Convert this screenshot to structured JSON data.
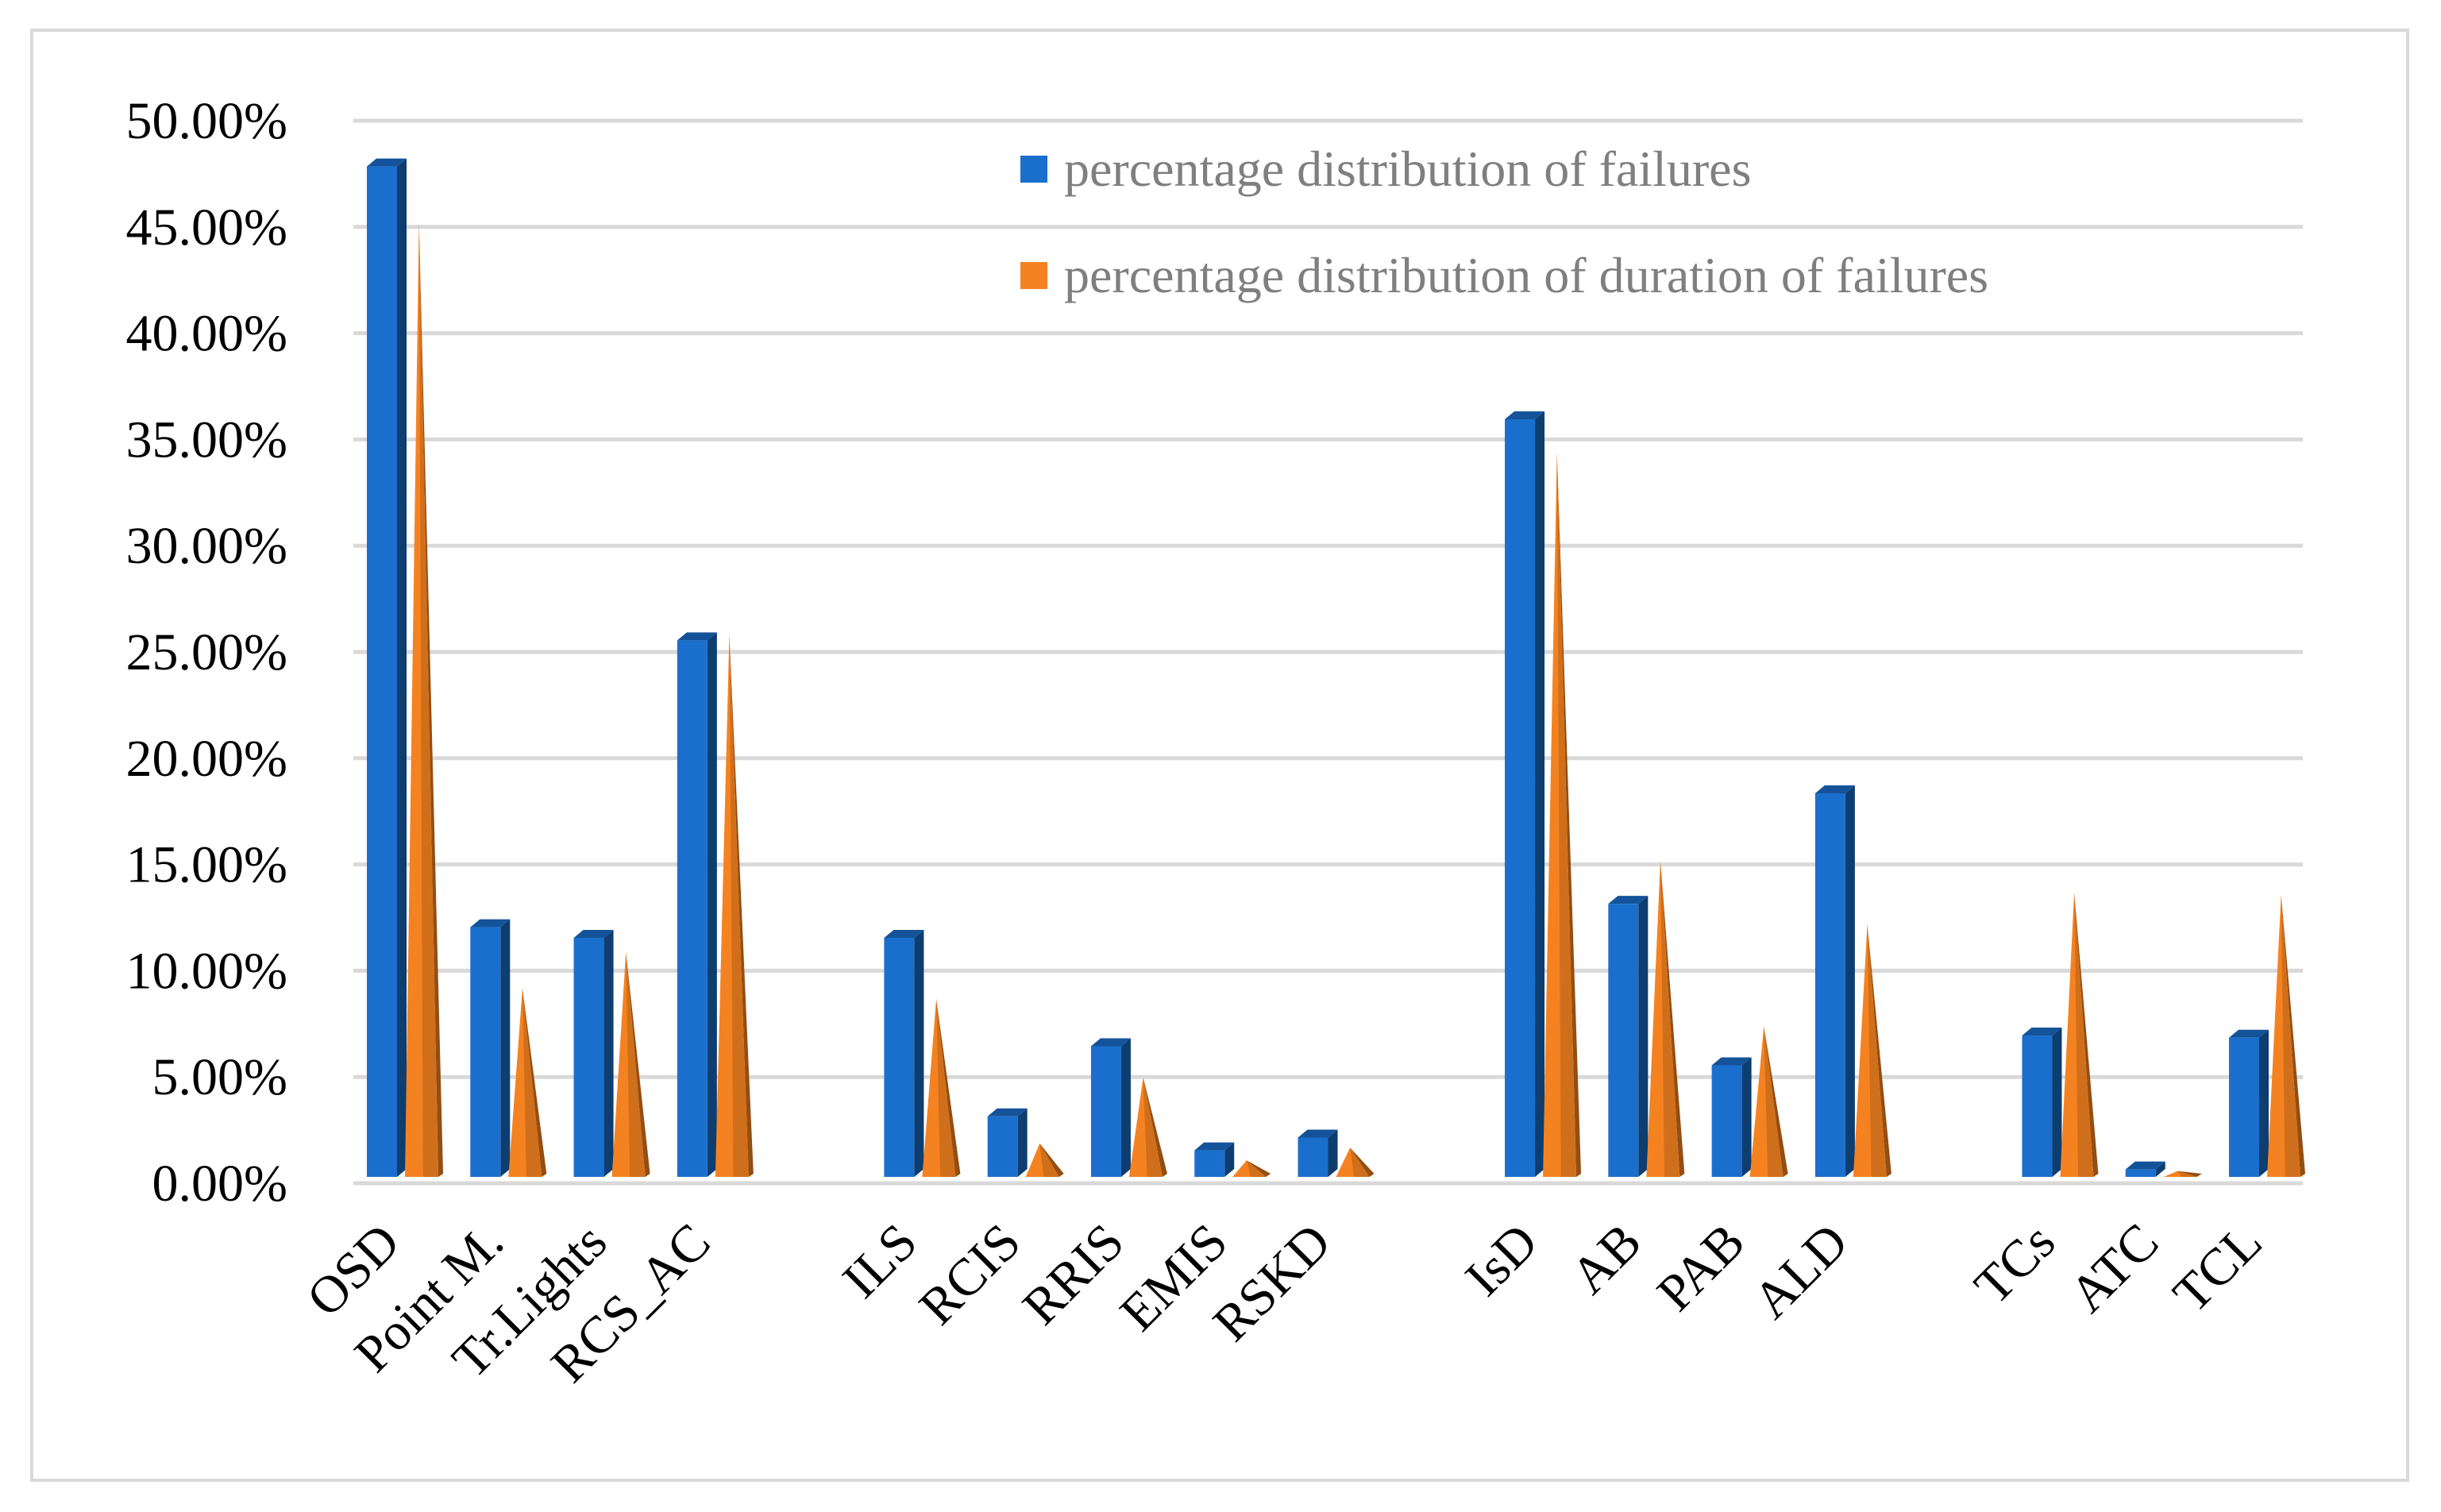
{
  "chart_data": {
    "type": "bar",
    "title": "",
    "xlabel": "",
    "ylabel": "",
    "ylim": [
      0,
      0.5
    ],
    "yticks": [
      "0.00%",
      "5.00%",
      "10.00%",
      "15.00%",
      "20.00%",
      "25.00%",
      "30.00%",
      "35.00%",
      "40.00%",
      "45.00%",
      "50.00%"
    ],
    "grid": true,
    "legend_position": "top-right",
    "categories": [
      "OSD",
      "Point M.",
      "Tr.Lights",
      "RCS_AC",
      "",
      "ILS",
      "RCIS",
      "RRIS",
      "EMIS",
      "RSKD",
      "",
      "IsD",
      "AB",
      "PAB",
      "ALD",
      "",
      "TCs",
      "ATC",
      "TCL"
    ],
    "series": [
      {
        "name": "percentage distribution of failures",
        "shape": "column",
        "color": "#1a6fcc",
        "values": [
          0.474,
          0.116,
          0.111,
          0.251,
          null,
          0.111,
          0.027,
          0.06,
          0.011,
          0.017,
          null,
          0.355,
          0.127,
          0.051,
          0.179,
          null,
          0.065,
          0.002,
          0.064
        ]
      },
      {
        "name": "percentage distribution of duration of failures",
        "shape": "cone",
        "color": "#f58220",
        "values": [
          0.448,
          0.088,
          0.105,
          0.254,
          null,
          0.083,
          0.015,
          0.046,
          0.007,
          0.013,
          null,
          0.34,
          0.148,
          0.07,
          0.118,
          null,
          0.133,
          0.002,
          0.132
        ]
      }
    ]
  }
}
